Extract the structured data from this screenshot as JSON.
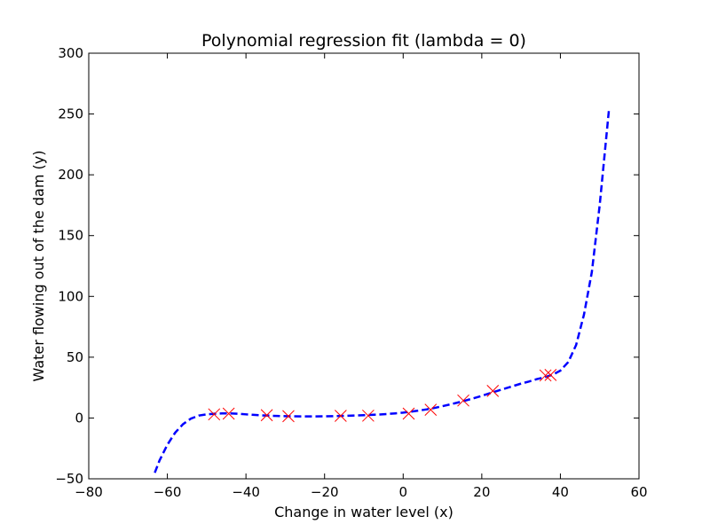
{
  "chart_data": {
    "type": "scatter",
    "title": "Polynomial regression fit (lambda = 0)",
    "xlabel": "Change in water level (x)",
    "ylabel": "Water flowing out of the dam (y)",
    "xlim": [
      -80,
      60
    ],
    "ylim": [
      -50,
      300
    ],
    "xticks": [
      -80,
      -60,
      -40,
      -20,
      0,
      20,
      40,
      60
    ],
    "xtick_labels": [
      "−80",
      "−60",
      "−40",
      "−20",
      "0",
      "20",
      "40",
      "60"
    ],
    "yticks": [
      -50,
      0,
      50,
      100,
      150,
      200,
      250,
      300
    ],
    "ytick_labels": [
      "−50",
      "0",
      "50",
      "100",
      "150",
      "200",
      "250",
      "300"
    ],
    "grid": false,
    "series": [
      {
        "kind": "scatter",
        "marker": "x",
        "color": "#ff0000",
        "x": [
          -48.1,
          -44.4,
          -34.7,
          -29.2,
          -15.9,
          -8.9,
          1.4,
          7.0,
          15.3,
          22.8,
          36.2,
          37.5
        ],
        "y": [
          3.0,
          3.6,
          2.3,
          1.5,
          1.8,
          1.9,
          3.6,
          6.8,
          14.4,
          22.3,
          35.0,
          35.4
        ]
      },
      {
        "kind": "line",
        "style": "dashed",
        "color": "#0000ff",
        "x": [
          -63.2,
          -62,
          -60,
          -58,
          -56,
          -54,
          -52,
          -50,
          -48,
          -46,
          -44,
          -42,
          -40,
          -38,
          -36,
          -34,
          -32,
          -30,
          -28,
          -26,
          -24,
          -22,
          -20,
          -18,
          -16,
          -14,
          -12,
          -10,
          -8,
          -6,
          -4,
          -2,
          0,
          2,
          4,
          6,
          8,
          10,
          12,
          14,
          16,
          18,
          20,
          22,
          24,
          26,
          28,
          30,
          32,
          34,
          36,
          38,
          40,
          42,
          44,
          46,
          48,
          50,
          52.4
        ],
        "y": [
          -45,
          -35,
          -22,
          -12,
          -5,
          -0.5,
          2,
          3,
          3.5,
          3.8,
          3.8,
          3.5,
          3.0,
          2.6,
          2.2,
          1.9,
          1.7,
          1.5,
          1.4,
          1.3,
          1.3,
          1.3,
          1.4,
          1.5,
          1.7,
          1.9,
          2.1,
          2.3,
          2.6,
          2.9,
          3.3,
          3.8,
          4.4,
          5.2,
          6.1,
          7.1,
          8.3,
          9.7,
          11.2,
          12.8,
          14.5,
          16.3,
          18.2,
          20.3,
          22.3,
          24.3,
          26.3,
          28.3,
          30.0,
          32.0,
          33.5,
          35.5,
          39,
          46,
          60,
          85,
          120,
          175,
          255
        ]
      }
    ]
  }
}
